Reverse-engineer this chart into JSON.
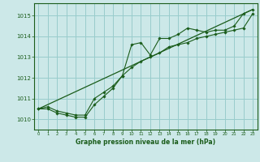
{
  "title": "Graphe pression niveau de la mer (hPa)",
  "background_color": "#cce8e8",
  "grid_color": "#99cccc",
  "line_color": "#1a5c1a",
  "marker_color": "#1a5c1a",
  "xlim": [
    -0.5,
    23.5
  ],
  "ylim": [
    1009.5,
    1015.6
  ],
  "yticks": [
    1010,
    1011,
    1012,
    1013,
    1014,
    1015
  ],
  "xticks": [
    0,
    1,
    2,
    3,
    4,
    5,
    6,
    7,
    8,
    9,
    10,
    11,
    12,
    13,
    14,
    15,
    16,
    17,
    18,
    19,
    20,
    21,
    22,
    23
  ],
  "series1_x": [
    0,
    1,
    2,
    3,
    4,
    5,
    6,
    7,
    8,
    9,
    10,
    11,
    12,
    13,
    14,
    15,
    16,
    17,
    18,
    19,
    20,
    21,
    22,
    23
  ],
  "series1_y": [
    1010.5,
    1010.6,
    1010.4,
    1010.3,
    1010.2,
    1010.2,
    1011.0,
    1011.3,
    1011.6,
    1012.1,
    1013.6,
    1013.7,
    1013.1,
    1013.9,
    1013.9,
    1014.1,
    1014.4,
    1014.3,
    1014.2,
    1014.3,
    1014.3,
    1014.5,
    1015.1,
    1015.3
  ],
  "series2_x": [
    0,
    1,
    2,
    3,
    4,
    5,
    6,
    7,
    8,
    9,
    10,
    11,
    12,
    13,
    14,
    15,
    16,
    17,
    18,
    19,
    20,
    21,
    22,
    23
  ],
  "series2_y": [
    1010.5,
    1010.5,
    1010.3,
    1010.2,
    1010.1,
    1010.1,
    1010.7,
    1011.1,
    1011.5,
    1012.1,
    1012.5,
    1012.8,
    1013.0,
    1013.2,
    1013.5,
    1013.6,
    1013.7,
    1013.9,
    1014.0,
    1014.1,
    1014.2,
    1014.3,
    1014.4,
    1015.1
  ],
  "trend_x": [
    0,
    23
  ],
  "trend_y": [
    1010.5,
    1015.3
  ]
}
